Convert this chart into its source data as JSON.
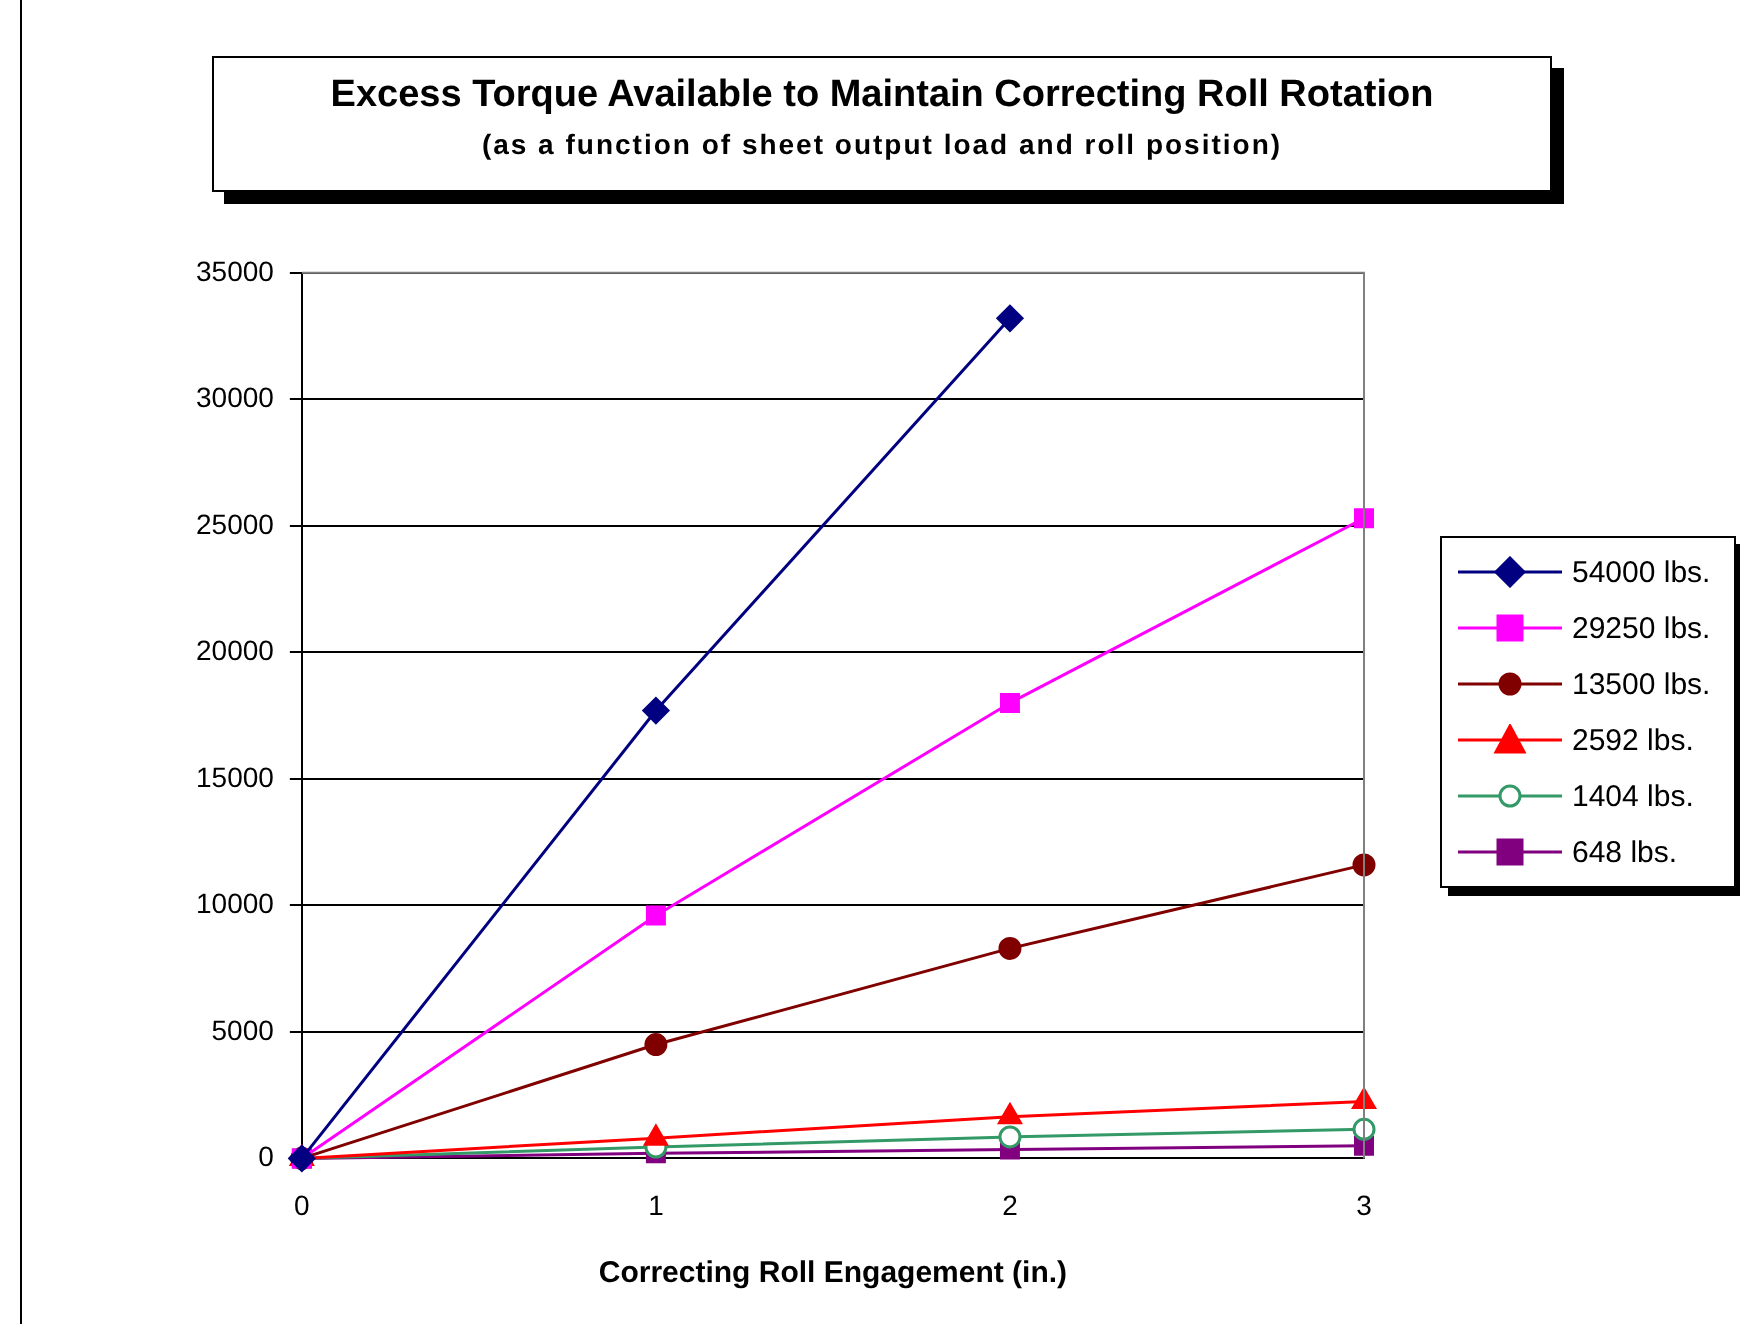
{
  "chart_data": {
    "type": "line",
    "title": "Excess Torque Available to Maintain Correcting Roll Rotation",
    "subtitle": "(as a function of sheet output load and roll position)",
    "xlabel": "Correcting Roll Engagement (in.)",
    "x": [
      0,
      1,
      2,
      3
    ],
    "xlim": [
      0,
      3
    ],
    "xticks": [
      0,
      1,
      2,
      3
    ],
    "ylim": [
      0,
      35000
    ],
    "yticks": [
      0,
      5000,
      10000,
      15000,
      20000,
      25000,
      30000,
      35000
    ],
    "grid": "y",
    "legend": "right",
    "line_style": "solid",
    "series": [
      {
        "name": "54000 lbs.",
        "color": "#000080",
        "marker": "diamond",
        "values": [
          0,
          17700,
          33200,
          null
        ]
      },
      {
        "name": "29250 lbs.",
        "color": "#ff00ff",
        "marker": "square",
        "values": [
          0,
          9600,
          18000,
          25300
        ]
      },
      {
        "name": "13500 lbs.",
        "color": "#800000",
        "marker": "circle",
        "values": [
          0,
          4500,
          8300,
          11600
        ]
      },
      {
        "name": "2592 lbs.",
        "color": "#ff0000",
        "marker": "triangle",
        "values": [
          0,
          800,
          1650,
          2250
        ]
      },
      {
        "name": "1404 lbs.",
        "color": "#339966",
        "marker": "circle",
        "values": [
          0,
          450,
          850,
          1150
        ]
      },
      {
        "name": "648 lbs.",
        "color": "#800080",
        "marker": "square",
        "values": [
          0,
          200,
          350,
          500
        ]
      }
    ]
  }
}
